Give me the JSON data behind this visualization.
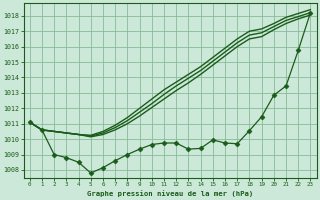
{
  "title": "Graphe pression niveau de la mer (hPa)",
  "bg_color": "#cce8d8",
  "grid_color": "#88bb99",
  "line_color": "#1a5c1a",
  "xlim": [
    -0.5,
    23.5
  ],
  "ylim": [
    1007.5,
    1018.8
  ],
  "yticks": [
    1008,
    1009,
    1010,
    1011,
    1012,
    1013,
    1014,
    1015,
    1016,
    1017,
    1018
  ],
  "xticks": [
    0,
    1,
    2,
    3,
    4,
    5,
    6,
    7,
    8,
    9,
    10,
    11,
    12,
    13,
    14,
    15,
    16,
    17,
    18,
    19,
    20,
    21,
    22,
    23
  ],
  "series": [
    {
      "x": [
        0,
        1,
        2,
        3,
        4,
        5,
        6,
        7,
        8,
        9,
        10,
        11,
        12,
        13,
        14,
        15,
        16,
        17,
        18,
        19,
        20,
        21,
        22,
        23
      ],
      "y": [
        1011.1,
        1010.6,
        1010.5,
        1010.4,
        1010.3,
        1010.25,
        1010.5,
        1010.9,
        1011.4,
        1012.0,
        1012.6,
        1013.2,
        1013.7,
        1014.2,
        1014.7,
        1015.3,
        1015.9,
        1016.5,
        1017.0,
        1017.15,
        1017.5,
        1017.9,
        1018.15,
        1018.4
      ],
      "marker": null,
      "lw": 1.0
    },
    {
      "x": [
        0,
        1,
        2,
        3,
        4,
        5,
        6,
        7,
        8,
        9,
        10,
        11,
        12,
        13,
        14,
        15,
        16,
        17,
        18,
        19,
        20,
        21,
        22,
        23
      ],
      "y": [
        1011.1,
        1010.6,
        1010.5,
        1010.4,
        1010.3,
        1010.2,
        1010.4,
        1010.75,
        1011.2,
        1011.75,
        1012.3,
        1012.9,
        1013.45,
        1013.95,
        1014.45,
        1015.05,
        1015.65,
        1016.25,
        1016.75,
        1016.9,
        1017.3,
        1017.7,
        1017.95,
        1018.2
      ],
      "marker": null,
      "lw": 1.0
    },
    {
      "x": [
        0,
        1,
        2,
        3,
        4,
        5,
        6,
        7,
        8,
        9,
        10,
        11,
        12,
        13,
        14,
        15,
        16,
        17,
        18,
        19,
        20,
        21,
        22,
        23
      ],
      "y": [
        1011.1,
        1010.6,
        1010.5,
        1010.4,
        1010.3,
        1010.15,
        1010.3,
        1010.6,
        1011.0,
        1011.5,
        1012.05,
        1012.6,
        1013.15,
        1013.65,
        1014.2,
        1014.8,
        1015.4,
        1016.0,
        1016.5,
        1016.65,
        1017.1,
        1017.5,
        1017.8,
        1018.05
      ],
      "marker": null,
      "lw": 1.0
    },
    {
      "x": [
        0,
        1,
        2,
        3,
        4,
        5,
        6,
        7,
        8,
        9,
        10,
        11,
        12,
        13,
        14,
        15,
        16,
        17,
        18,
        19,
        20,
        21,
        22,
        23
      ],
      "y": [
        1011.1,
        1010.6,
        1009.0,
        1008.8,
        1008.5,
        1007.8,
        1008.15,
        1008.6,
        1009.0,
        1009.35,
        1009.65,
        1009.75,
        1009.75,
        1009.35,
        1009.4,
        1009.95,
        1009.75,
        1009.7,
        1010.55,
        1011.45,
        1012.85,
        1013.45,
        1015.75,
        1018.2
      ],
      "marker": "D",
      "ms": 2.5,
      "lw": 0.9
    }
  ]
}
